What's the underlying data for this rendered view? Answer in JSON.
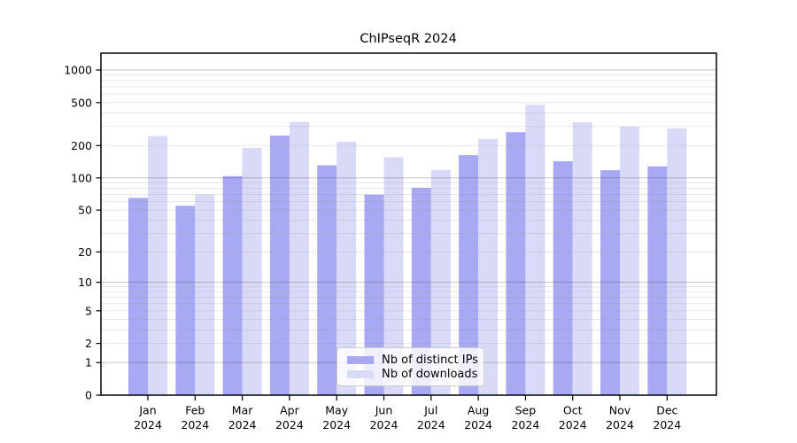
{
  "title": "ChIPseqR 2024",
  "chart_data": {
    "type": "bar",
    "title": "ChIPseqR 2024",
    "categories": [
      "Jan 2024",
      "Feb 2024",
      "Mar 2024",
      "Apr 2024",
      "May 2024",
      "Jun 2024",
      "Jul 2024",
      "Aug 2024",
      "Sep 2024",
      "Oct 2024",
      "Nov 2024",
      "Dec 2024"
    ],
    "series": [
      {
        "name": "Nb of distinct IPs",
        "color": "#a9a9f3",
        "values": [
          65,
          55,
          104,
          247,
          131,
          70,
          81,
          163,
          266,
          143,
          118,
          128
        ]
      },
      {
        "name": "Nb of downloads",
        "color": "#d9d9f8",
        "values": [
          245,
          70,
          190,
          331,
          217,
          156,
          119,
          230,
          477,
          329,
          300,
          288
        ]
      }
    ],
    "xlabel": "",
    "ylabel": "",
    "yscale": "log10(value+1)",
    "yticks": [
      0,
      1,
      2,
      5,
      10,
      20,
      50,
      100,
      200,
      500,
      1000
    ],
    "ylim": [
      0,
      1400
    ],
    "grid": "horizontal major + log minor",
    "legend_position": "inside bottom-center",
    "colors": {
      "axis": "#000000",
      "major_grid": "#c6c6c6",
      "minor_grid": "#e9e9e9",
      "background": "#ffffff"
    }
  }
}
